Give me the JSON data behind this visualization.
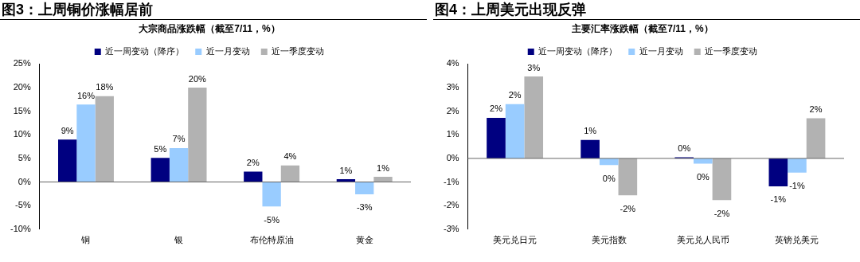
{
  "chart_data": [
    {
      "type": "bar",
      "title": "图3：上周铜价涨幅居前",
      "subtitle": "大宗商品涨跌幅（截至7/11，%）",
      "categories": [
        "铜",
        "银",
        "布伦特原油",
        "黄金"
      ],
      "series": [
        {
          "name": "近一周变动（降序）",
          "color": "#000080",
          "values": [
            9.0,
            5.1,
            2.2,
            0.6
          ],
          "value_labels": [
            "9%",
            "5%",
            "2%",
            "1%"
          ]
        },
        {
          "name": "近一月变动",
          "color": "#99ccff",
          "values": [
            16.4,
            7.2,
            -5.2,
            -2.6
          ],
          "value_labels": [
            "16%",
            "7%",
            "-5%",
            "-3%"
          ]
        },
        {
          "name": "近一季度变动",
          "color": "#b2b2b2",
          "values": [
            18.2,
            20.0,
            3.5,
            1.1
          ],
          "value_labels": [
            "18%",
            "20%",
            "4%",
            "1%"
          ]
        }
      ],
      "ylim": [
        -10,
        25
      ],
      "yticks": [
        {
          "value": -10,
          "label": "-10%"
        },
        {
          "value": -5,
          "label": "-5%"
        },
        {
          "value": 0,
          "label": "0%"
        },
        {
          "value": 5,
          "label": "5%"
        },
        {
          "value": 10,
          "label": "10%"
        },
        {
          "value": 15,
          "label": "15%"
        },
        {
          "value": 20,
          "label": "20%"
        },
        {
          "value": 25,
          "label": "25%"
        }
      ],
      "legend": "top"
    },
    {
      "type": "bar",
      "title": "图4：上周美元出现反弹",
      "subtitle": "主要汇率涨跌幅（截至7/11，%）",
      "categories": [
        "美元兑日元",
        "美元指数",
        "美元兑人民币",
        "英镑兑美元"
      ],
      "series": [
        {
          "name": "近一周变动（降序）",
          "color": "#000080",
          "values": [
            1.72,
            0.78,
            0.05,
            -1.18
          ],
          "value_labels": [
            "2%",
            "1%",
            "0%",
            "-1%"
          ]
        },
        {
          "name": "近一月变动",
          "color": "#99ccff",
          "values": [
            2.3,
            -0.28,
            -0.22,
            -0.6
          ],
          "value_labels": [
            "2%",
            "0%",
            "0%",
            "-1%"
          ]
        },
        {
          "name": "近一季度变动",
          "color": "#b2b2b2",
          "values": [
            3.47,
            -1.56,
            -1.77,
            1.7
          ],
          "value_labels": [
            "3%",
            "-2%",
            "-2%",
            "2%"
          ]
        }
      ],
      "ylim": [
        -3,
        4
      ],
      "yticks": [
        {
          "value": -3,
          "label": "-3%"
        },
        {
          "value": -2,
          "label": "-2%"
        },
        {
          "value": -1,
          "label": "-1%"
        },
        {
          "value": 0,
          "label": "0%"
        },
        {
          "value": 1,
          "label": "1%"
        },
        {
          "value": 2,
          "label": "2%"
        },
        {
          "value": 3,
          "label": "3%"
        },
        {
          "value": 4,
          "label": "4%"
        }
      ],
      "legend": "top"
    }
  ]
}
